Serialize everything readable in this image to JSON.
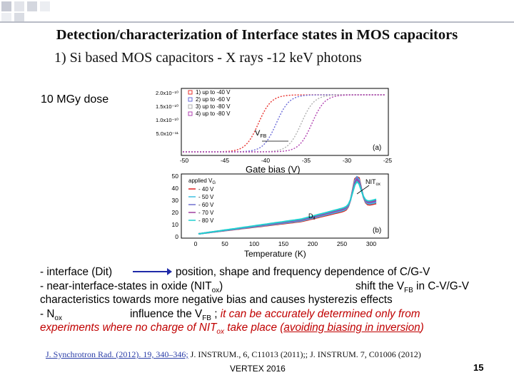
{
  "title": "Detection/characterization of Interface states in MOS capacitors",
  "subtitle": "1) Si based MOS capacitors - X rays -12 keV photons",
  "dose_label": "10 MGy dose",
  "panel_a": {
    "y_ticks": [
      "2.0x10⁻¹⁰",
      "1.5x10⁻¹⁰",
      "1.0x10⁻¹⁰",
      "5.0x10⁻¹¹"
    ],
    "x_ticks": [
      "-50",
      "-45",
      "-40",
      "-35",
      "-30",
      "-25"
    ],
    "xlabel": "Gate bias (V)",
    "legend": [
      "1) up to -40 V",
      "2) up to -60 V",
      "3) up to -80 V",
      "4) up to -80 V"
    ],
    "annotation": "V",
    "annotation_sub": "FB",
    "panel_label": "(a)",
    "colors": [
      "#e8322e",
      "#6a6ad8",
      "#b0b0b0",
      "#b040b0"
    ]
  },
  "panel_b": {
    "y_ticks": [
      "50",
      "40",
      "30",
      "20",
      "10",
      "0"
    ],
    "x_ticks": [
      "0",
      "50",
      "100",
      "150",
      "200",
      "250",
      "300"
    ],
    "xlabel": "Temperature (K)",
    "legend_title": "applied V",
    "legend_title_sub": "G",
    "legend": [
      "- 40 V",
      "- 50 V",
      "- 60 V",
      "- 70 V",
      "- 80 V"
    ],
    "annotation_nit": "NIT",
    "annotation_nit_sub": "ox",
    "annotation_dit": "D",
    "annotation_dit_sub": "it",
    "panel_label": "(b)"
  },
  "body": {
    "l1a": "- interface (Dit)",
    "l1b": "position, shape and frequency dependence of C/G-V",
    "l2a": "- near-interface-states in oxide (NIT",
    "l2sub": "ox",
    "l2b": ")",
    "l2c": "shift the V",
    "l2csub": "FB",
    "l2d": " in C-V/G-V",
    "l3": "characteristics towards more negative bias and causes hysterezis effects",
    "l4a": "- N",
    "l4sub": "ox",
    "l4b": "influence the V",
    "l4bsub": "FB",
    "l4c": " ; ",
    "l4red": "it can be accurately determined only from",
    "l5red1": "experiments where no charge of NIT",
    "l5sub": "ox",
    "l5red2": " take place (",
    "l5ul": "avoiding biasing in inversion",
    "l5end": ")"
  },
  "refs": {
    "ref1": "J. Synchrotron Rad. (2012). 19, 340–346;",
    "ref2": " J. INSTRUM., 6, C11013  (2011);; J. INSTRUM. 7, C01006 (2012)"
  },
  "footer": "VERTEX 2016",
  "page_number": "15"
}
